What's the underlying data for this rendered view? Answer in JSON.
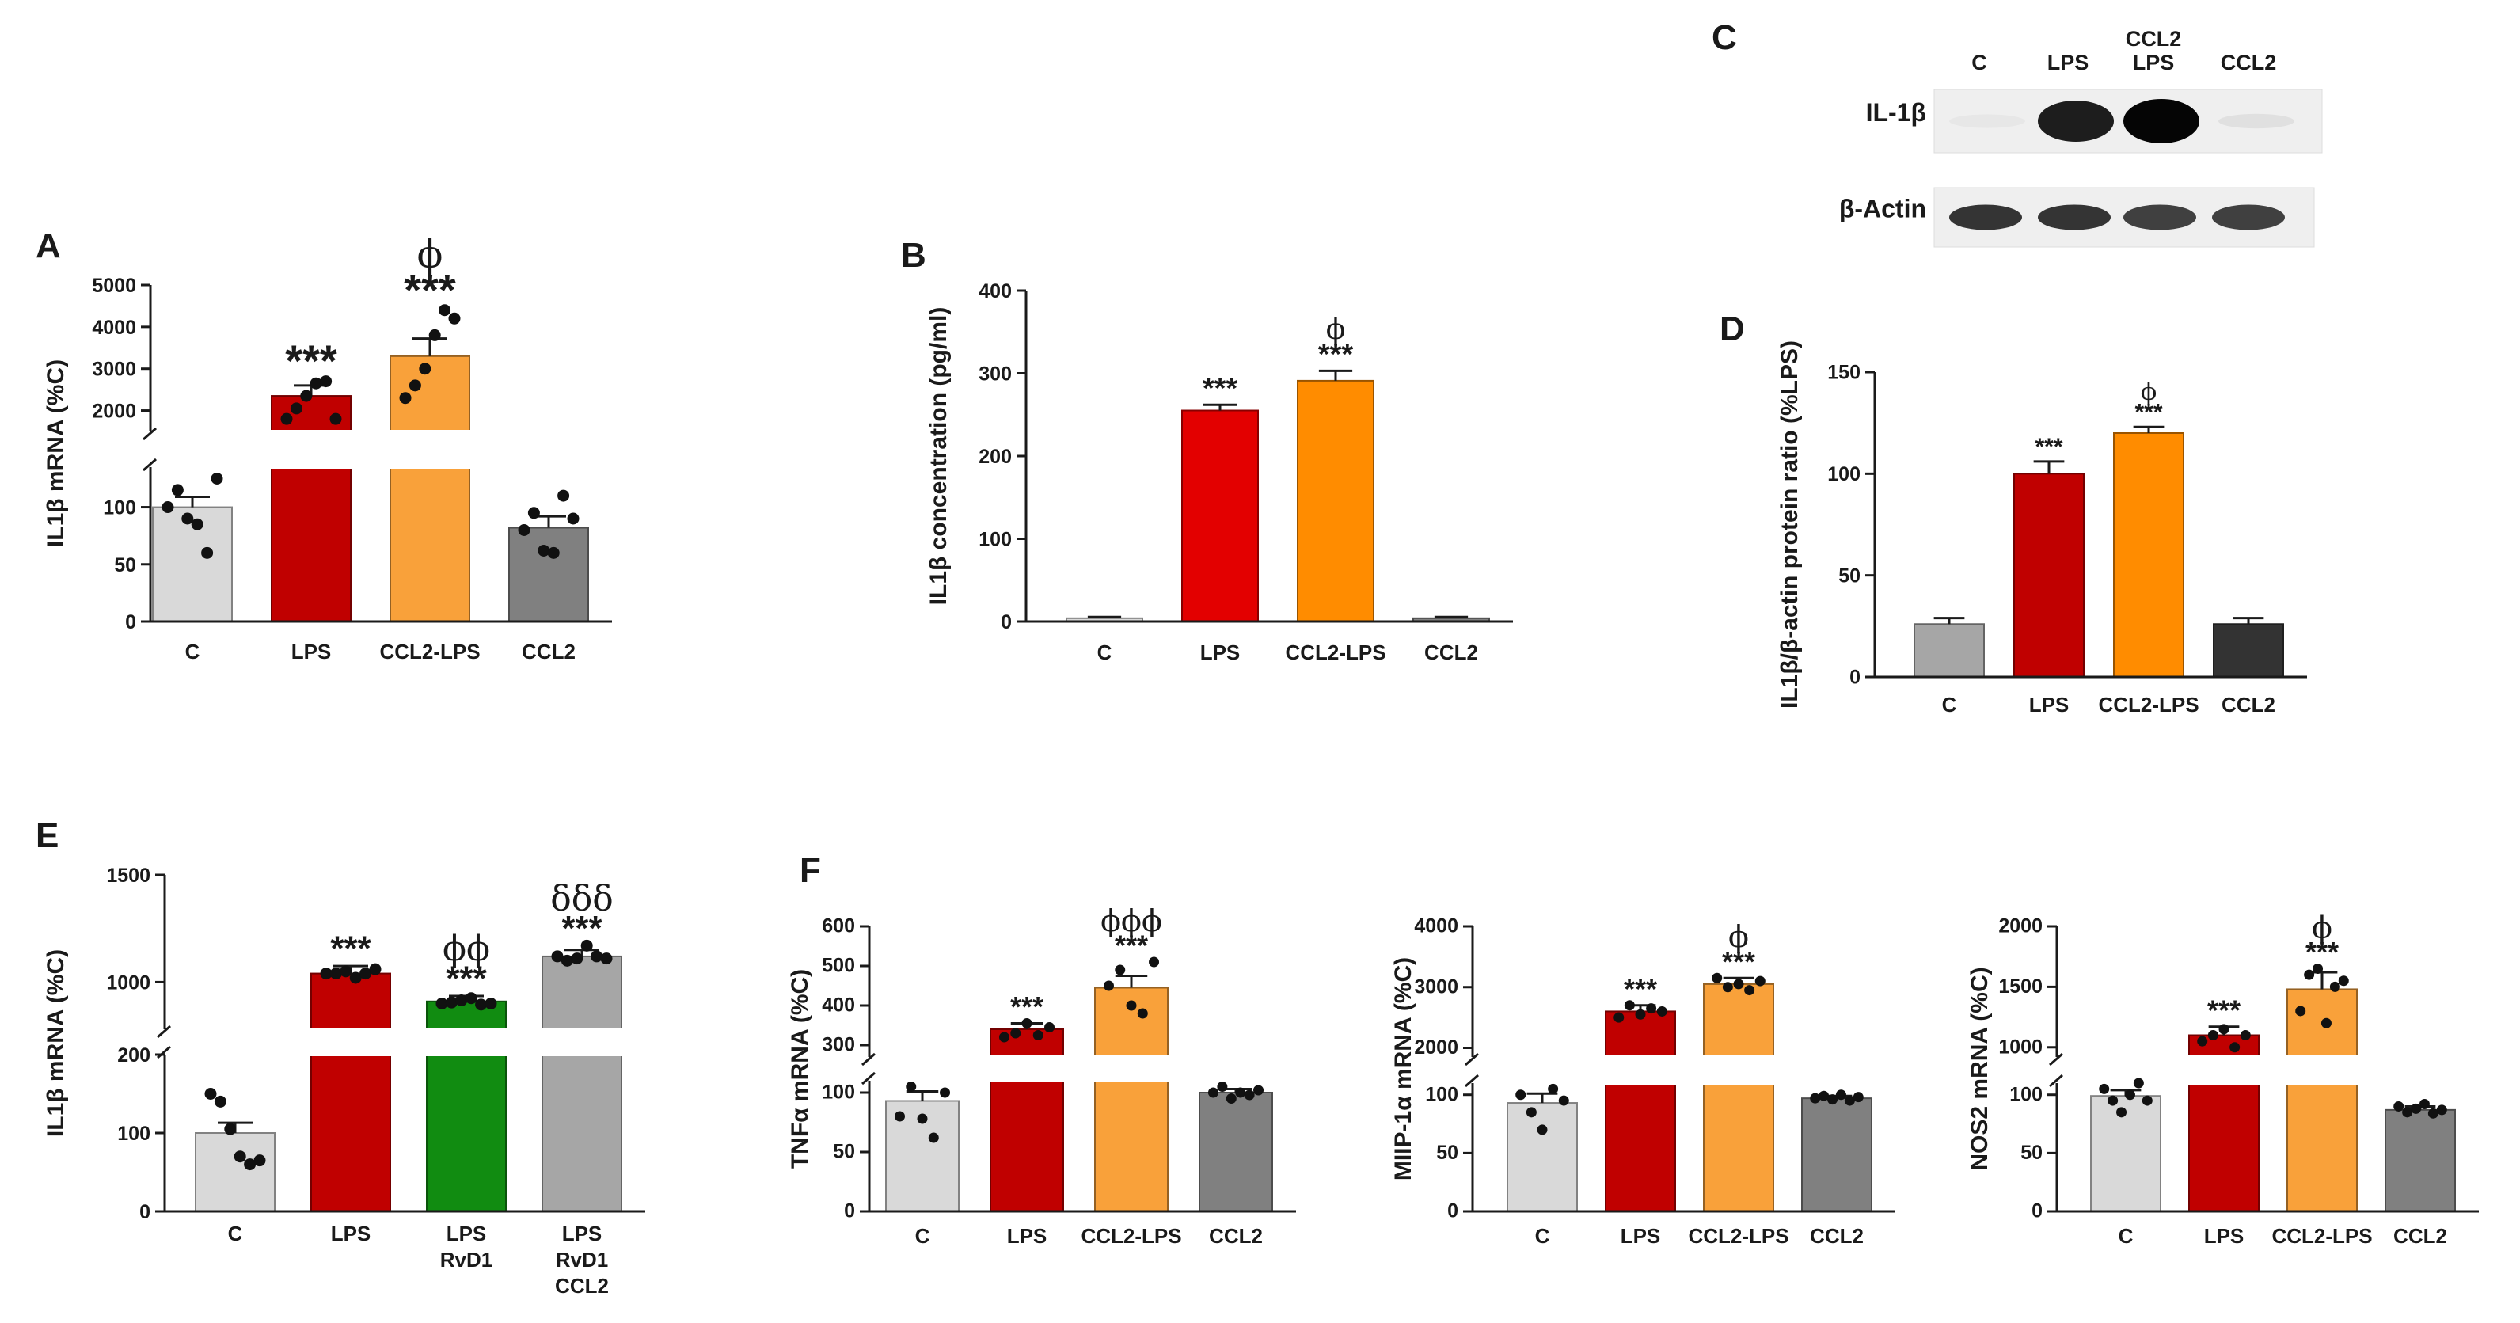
{
  "colors": {
    "control": "#d9d9d9",
    "lps_dark_red": "#c00000",
    "ccl2lps_orange": "#f9a13a",
    "ccl2_gray": "#808080",
    "b_c": "#d9d9d9",
    "b_lps": "#e30000",
    "b_ccl2lps": "#ff8c00",
    "b_ccl2": "#808080",
    "d_c": "#a6a6a6",
    "d_ccl2": "#333333",
    "rvd1_green": "#118c11",
    "rvd1_ccl2_gray": "#a6a6a6"
  },
  "panels": {
    "A": "A",
    "B": "B",
    "C": "C",
    "D": "D",
    "E": "E",
    "F": "F"
  },
  "blot": {
    "lanes": [
      "C",
      "LPS",
      "CCL2\nLPS",
      "CCL2"
    ],
    "rows": [
      "IL-1β",
      "β-Actin"
    ],
    "il1b_intensity": [
      0.03,
      0.9,
      1.0,
      0.06
    ],
    "actin_intensity": [
      0.8,
      0.8,
      0.75,
      0.75
    ]
  },
  "chart_data": [
    {
      "id": "A",
      "type": "bar",
      "ylabel": "IL1β  mRNA (%C)",
      "categories": [
        "C",
        "LPS",
        "CCL2-LPS",
        "CCL2"
      ],
      "values": [
        100,
        2350,
        3300,
        82
      ],
      "errors": [
        9,
        250,
        420,
        10
      ],
      "points": [
        [
          100,
          115,
          90,
          85,
          60,
          125
        ],
        [
          1800,
          2050,
          2350,
          2650,
          2700,
          1800
        ],
        [
          2300,
          2600,
          3000,
          3800,
          4400,
          4200
        ],
        [
          80,
          95,
          62,
          60,
          110,
          90
        ]
      ],
      "broken_axis": true,
      "lower_range": [
        0,
        135
      ],
      "lower_ticks": [
        0,
        50,
        100
      ],
      "upper_range": [
        1500,
        5000
      ],
      "upper_ticks": [
        2000,
        3000,
        4000,
        5000
      ],
      "annotations": [
        "",
        "***",
        "***",
        ""
      ],
      "symbols": [
        "",
        "",
        "ϕ",
        ""
      ]
    },
    {
      "id": "B",
      "type": "bar",
      "ylabel": "IL1β concentration (pg/ml)",
      "categories": [
        "C",
        "LPS",
        "CCL2-LPS",
        "CCL2"
      ],
      "values": [
        4,
        255,
        291,
        4
      ],
      "errors": [
        1.5,
        7,
        12,
        1.5
      ],
      "ylim": [
        0,
        400
      ],
      "yticks": [
        0,
        100,
        200,
        300,
        400
      ],
      "annotations": [
        "",
        "***",
        "***",
        ""
      ],
      "symbols": [
        "",
        "",
        "ϕ",
        ""
      ]
    },
    {
      "id": "D",
      "type": "bar",
      "ylabel": "IL1β/β-actin protein ratio (%LPS)",
      "categories": [
        "C",
        "LPS",
        "CCL2-LPS",
        "CCL2"
      ],
      "values": [
        26,
        100,
        120,
        26
      ],
      "errors": [
        3,
        6,
        3,
        3
      ],
      "ylim": [
        0,
        150
      ],
      "yticks": [
        0,
        50,
        100,
        150
      ],
      "annotations": [
        "",
        "***",
        "***",
        ""
      ],
      "symbols": [
        "",
        "",
        "ϕ",
        ""
      ]
    },
    {
      "id": "E",
      "type": "bar",
      "ylabel": "IL1β mRNA (%C)",
      "categories": [
        "C",
        "LPS",
        "LPS\nRvD1",
        "LPS\nRvD1\nCCL2"
      ],
      "values": [
        100,
        1040,
        910,
        1120
      ],
      "errors": [
        13,
        35,
        25,
        30
      ],
      "points": [
        [
          150,
          140,
          105,
          70,
          60,
          65
        ],
        [
          1040,
          1040,
          1050,
          1020,
          1040,
          1060
        ],
        [
          900,
          905,
          915,
          925,
          895,
          900
        ],
        [
          1120,
          1100,
          1110,
          1170,
          1120,
          1110
        ]
      ],
      "broken_axis": true,
      "lower_range": [
        0,
        200
      ],
      "lower_ticks": [
        0,
        100,
        200
      ],
      "upper_range": [
        780,
        1500
      ],
      "upper_ticks": [
        1000,
        1500
      ],
      "annotations": [
        "",
        "***",
        "***",
        "***"
      ],
      "symbols": [
        "",
        "",
        "ϕϕ",
        "δδδ"
      ]
    },
    {
      "id": "F1",
      "type": "bar",
      "ylabel": "TNFα  mRNA (%C)",
      "categories": [
        "C",
        "LPS",
        "CCL2-LPS",
        "CCL2"
      ],
      "values": [
        93,
        340,
        445,
        100
      ],
      "errors": [
        8,
        15,
        30,
        3
      ],
      "points": [
        [
          80,
          105,
          78,
          62,
          100
        ],
        [
          320,
          330,
          355,
          325,
          345
        ],
        [
          450,
          490,
          400,
          380,
          510
        ],
        [
          100,
          105,
          95,
          100,
          98,
          102
        ]
      ],
      "broken_axis": true,
      "lower_range": [
        0,
        110
      ],
      "lower_ticks": [
        0,
        50,
        100
      ],
      "upper_range": [
        270,
        600
      ],
      "upper_ticks": [
        300,
        400,
        500,
        600
      ],
      "annotations": [
        "",
        "***",
        "***",
        ""
      ],
      "symbols": [
        "",
        "",
        "ϕϕϕ",
        ""
      ]
    },
    {
      "id": "F2",
      "type": "bar",
      "ylabel": "MIIP-1α  mRNA (%C)",
      "categories": [
        "C",
        "LPS",
        "CCL2-LPS",
        "CCL2"
      ],
      "values": [
        93,
        2600,
        3050,
        97
      ],
      "errors": [
        8,
        100,
        100,
        2
      ],
      "points": [
        [
          100,
          85,
          70,
          105,
          95
        ],
        [
          2500,
          2700,
          2550,
          2650,
          2600
        ],
        [
          3150,
          3000,
          3050,
          2950,
          3100
        ],
        [
          97,
          99,
          96,
          100,
          95,
          98
        ]
      ],
      "broken_axis": true,
      "lower_range": [
        0,
        110
      ],
      "lower_ticks": [
        0,
        50,
        100
      ],
      "upper_range": [
        1850,
        4000
      ],
      "upper_ticks": [
        2000,
        3000,
        4000
      ],
      "annotations": [
        "",
        "***",
        "***",
        ""
      ],
      "symbols": [
        "",
        "",
        "ϕ",
        ""
      ]
    },
    {
      "id": "F3",
      "type": "bar",
      "ylabel": "NOS2  mRNA (%C)",
      "categories": [
        "C",
        "LPS",
        "CCL2-LPS",
        "CCL2"
      ],
      "values": [
        99,
        1100,
        1480,
        87
      ],
      "errors": [
        5,
        70,
        140,
        3
      ],
      "points": [
        [
          105,
          95,
          85,
          100,
          110,
          95
        ],
        [
          1050,
          1100,
          1150,
          1000,
          1100
        ],
        [
          1300,
          1600,
          1650,
          1200,
          1500,
          1550
        ],
        [
          90,
          85,
          88,
          92,
          84,
          87
        ]
      ],
      "broken_axis": true,
      "lower_range": [
        0,
        110
      ],
      "lower_ticks": [
        0,
        50,
        100
      ],
      "upper_range": [
        920,
        2000
      ],
      "upper_ticks": [
        1000,
        1500,
        2000
      ],
      "annotations": [
        "",
        "***",
        "***",
        ""
      ],
      "symbols": [
        "",
        "",
        "ϕ",
        ""
      ]
    }
  ]
}
